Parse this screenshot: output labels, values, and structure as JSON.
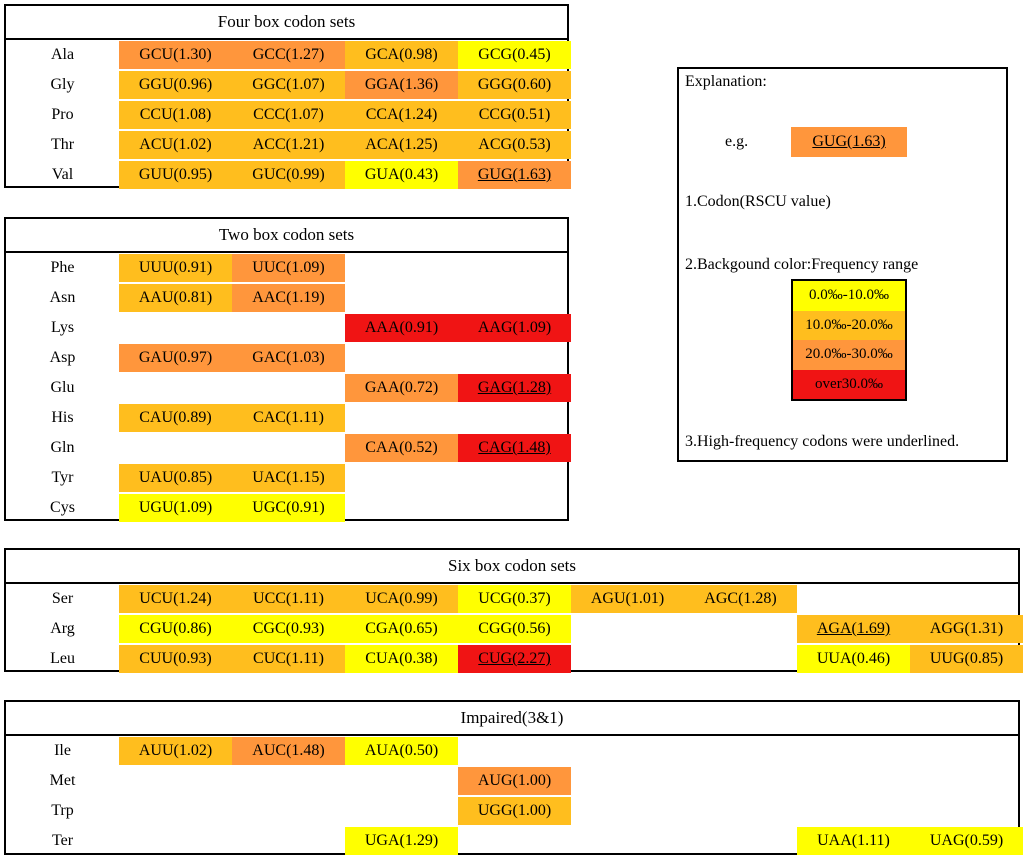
{
  "colors": {
    "yellow": "#ffff00",
    "light_orange": "#ffbe1e",
    "orange": "#ff963c",
    "red": "#f01414"
  },
  "tables": {
    "four": {
      "title": "Four box codon sets",
      "rows": [
        {
          "aa": "Ala",
          "cells": [
            {
              "codon": "GCU(1.30)",
              "color": "#ff963c",
              "u": false
            },
            {
              "codon": "GCC(1.27)",
              "color": "#ff963c",
              "u": false
            },
            {
              "codon": "GCA(0.98)",
              "color": "#ffbe1e",
              "u": false
            },
            {
              "codon": "GCG(0.45)",
              "color": "#ffff00",
              "u": false
            }
          ]
        },
        {
          "aa": "Gly",
          "cells": [
            {
              "codon": "GGU(0.96)",
              "color": "#ffbe1e",
              "u": false
            },
            {
              "codon": "GGC(1.07)",
              "color": "#ffbe1e",
              "u": false
            },
            {
              "codon": "GGA(1.36)",
              "color": "#ff963c",
              "u": false
            },
            {
              "codon": "GGG(0.60)",
              "color": "#ffbe1e",
              "u": false
            }
          ]
        },
        {
          "aa": "Pro",
          "cells": [
            {
              "codon": "CCU(1.08)",
              "color": "#ffbe1e",
              "u": false
            },
            {
              "codon": "CCC(1.07)",
              "color": "#ffbe1e",
              "u": false
            },
            {
              "codon": "CCA(1.24)",
              "color": "#ffbe1e",
              "u": false
            },
            {
              "codon": "CCG(0.51)",
              "color": "#ffbe1e",
              "u": false
            }
          ]
        },
        {
          "aa": "Thr",
          "cells": [
            {
              "codon": "ACU(1.02)",
              "color": "#ffbe1e",
              "u": false
            },
            {
              "codon": "ACC(1.21)",
              "color": "#ffbe1e",
              "u": false
            },
            {
              "codon": "ACA(1.25)",
              "color": "#ffbe1e",
              "u": false
            },
            {
              "codon": "ACG(0.53)",
              "color": "#ffbe1e",
              "u": false
            }
          ]
        },
        {
          "aa": "Val",
          "cells": [
            {
              "codon": "GUU(0.95)",
              "color": "#ffbe1e",
              "u": false
            },
            {
              "codon": "GUC(0.99)",
              "color": "#ffbe1e",
              "u": false
            },
            {
              "codon": "GUA(0.43)",
              "color": "#ffff00",
              "u": false
            },
            {
              "codon": "GUG(1.63)",
              "color": "#ff963c",
              "u": true
            }
          ]
        }
      ]
    },
    "two": {
      "title": "Two box codon sets",
      "rows": [
        {
          "aa": "Phe",
          "cells": [
            {
              "codon": "UUU(0.91)",
              "color": "#ffbe1e",
              "u": false
            },
            {
              "codon": "UUC(1.09)",
              "color": "#ff963c",
              "u": false
            },
            null,
            null
          ]
        },
        {
          "aa": "Asn",
          "cells": [
            {
              "codon": "AAU(0.81)",
              "color": "#ffbe1e",
              "u": false
            },
            {
              "codon": "AAC(1.19)",
              "color": "#ff963c",
              "u": false
            },
            null,
            null
          ]
        },
        {
          "aa": "Lys",
          "cells": [
            null,
            null,
            {
              "codon": "AAA(0.91)",
              "color": "#f01414",
              "u": false
            },
            {
              "codon": "AAG(1.09)",
              "color": "#f01414",
              "u": false
            }
          ]
        },
        {
          "aa": "Asp",
          "cells": [
            {
              "codon": "GAU(0.97)",
              "color": "#ff963c",
              "u": false
            },
            {
              "codon": "GAC(1.03)",
              "color": "#ff963c",
              "u": false
            },
            null,
            null
          ]
        },
        {
          "aa": "Glu",
          "cells": [
            null,
            null,
            {
              "codon": "GAA(0.72)",
              "color": "#ff963c",
              "u": false
            },
            {
              "codon": "GAG(1.28)",
              "color": "#f01414",
              "u": true
            }
          ]
        },
        {
          "aa": "His",
          "cells": [
            {
              "codon": "CAU(0.89)",
              "color": "#ffbe1e",
              "u": false
            },
            {
              "codon": "CAC(1.11)",
              "color": "#ffbe1e",
              "u": false
            },
            null,
            null
          ]
        },
        {
          "aa": "Gln",
          "cells": [
            null,
            null,
            {
              "codon": "CAA(0.52)",
              "color": "#ff963c",
              "u": false
            },
            {
              "codon": "CAG(1.48)",
              "color": "#f01414",
              "u": true
            }
          ]
        },
        {
          "aa": "Tyr",
          "cells": [
            {
              "codon": "UAU(0.85)",
              "color": "#ffbe1e",
              "u": false
            },
            {
              "codon": "UAC(1.15)",
              "color": "#ffbe1e",
              "u": false
            },
            null,
            null
          ]
        },
        {
          "aa": "Cys",
          "cells": [
            {
              "codon": "UGU(1.09)",
              "color": "#ffff00",
              "u": false
            },
            {
              "codon": "UGC(0.91)",
              "color": "#ffff00",
              "u": false
            },
            null,
            null
          ]
        }
      ]
    },
    "six": {
      "title": "Six box codon sets",
      "rows": [
        {
          "aa": "Ser",
          "cells": [
            {
              "codon": "UCU(1.24)",
              "color": "#ffbe1e",
              "u": false
            },
            {
              "codon": "UCC(1.11)",
              "color": "#ffbe1e",
              "u": false
            },
            {
              "codon": "UCA(0.99)",
              "color": "#ffbe1e",
              "u": false
            },
            {
              "codon": "UCG(0.37)",
              "color": "#ffff00",
              "u": false
            },
            {
              "codon": "AGU(1.01)",
              "color": "#ffbe1e",
              "u": false
            },
            {
              "codon": "AGC(1.28)",
              "color": "#ffbe1e",
              "u": false
            },
            null,
            null
          ]
        },
        {
          "aa": "Arg",
          "cells": [
            {
              "codon": "CGU(0.86)",
              "color": "#ffff00",
              "u": false
            },
            {
              "codon": "CGC(0.93)",
              "color": "#ffff00",
              "u": false
            },
            {
              "codon": "CGA(0.65)",
              "color": "#ffff00",
              "u": false
            },
            {
              "codon": "CGG(0.56)",
              "color": "#ffff00",
              "u": false
            },
            null,
            null,
            {
              "codon": "AGA(1.69)",
              "color": "#ffbe1e",
              "u": true
            },
            {
              "codon": "AGG(1.31)",
              "color": "#ffbe1e",
              "u": false
            }
          ]
        },
        {
          "aa": "Leu",
          "cells": [
            {
              "codon": "CUU(0.93)",
              "color": "#ffbe1e",
              "u": false
            },
            {
              "codon": "CUC(1.11)",
              "color": "#ffbe1e",
              "u": false
            },
            {
              "codon": "CUA(0.38)",
              "color": "#ffff00",
              "u": false
            },
            {
              "codon": "CUG(2.27)",
              "color": "#f01414",
              "u": true
            },
            null,
            null,
            {
              "codon": "UUA(0.46)",
              "color": "#ffff00",
              "u": false
            },
            {
              "codon": "UUG(0.85)",
              "color": "#ffbe1e",
              "u": false
            }
          ]
        }
      ]
    },
    "impaired": {
      "title": "Impaired(3&1)",
      "rows": [
        {
          "aa": "Ile",
          "cells": [
            {
              "codon": "AUU(1.02)",
              "color": "#ffbe1e",
              "u": false
            },
            {
              "codon": "AUC(1.48)",
              "color": "#ff963c",
              "u": false
            },
            {
              "codon": "AUA(0.50)",
              "color": "#ffff00",
              "u": false
            },
            null,
            null,
            null,
            null,
            null
          ]
        },
        {
          "aa": "Met",
          "cells": [
            null,
            null,
            null,
            {
              "codon": "AUG(1.00)",
              "color": "#ff963c",
              "u": false
            },
            null,
            null,
            null,
            null
          ]
        },
        {
          "aa": "Trp",
          "cells": [
            null,
            null,
            null,
            {
              "codon": "UGG(1.00)",
              "color": "#ffbe1e",
              "u": false
            },
            null,
            null,
            null,
            null
          ]
        },
        {
          "aa": "Ter",
          "cells": [
            null,
            null,
            {
              "codon": "UGA(1.29)",
              "color": "#ffff00",
              "u": false
            },
            null,
            null,
            null,
            {
              "codon": "UAA(1.11)",
              "color": "#ffff00",
              "u": false
            },
            {
              "codon": "UAG(0.59)",
              "color": "#ffff00",
              "u": false
            }
          ]
        }
      ]
    }
  },
  "explanation": {
    "heading": "Explanation:",
    "eg_label": "e.g.",
    "eg_codon": "GUG(1.63)",
    "eg_color": "#ff963c",
    "line1": "1.Codon(RSCU value)",
    "line2": "2.Backgound color:Frequency range",
    "line3": "3.High-frequency codons were underlined.",
    "legend": [
      {
        "label": "0.0‰-10.0‰",
        "color": "#ffff00"
      },
      {
        "label": "10.0‰-20.0‰",
        "color": "#ffbe1e"
      },
      {
        "label": "20.0‰-30.0‰",
        "color": "#ff963c"
      },
      {
        "label": "over30.0‰",
        "color": "#f01414"
      }
    ]
  }
}
